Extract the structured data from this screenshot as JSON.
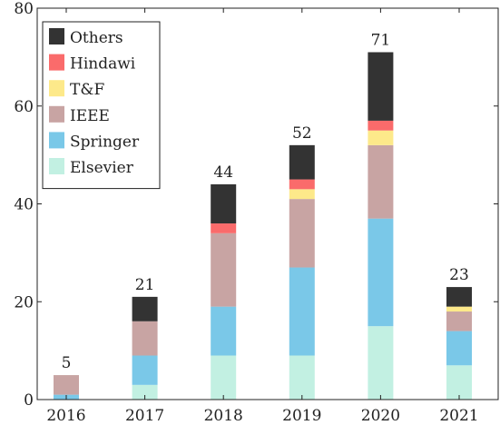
{
  "chart_data": {
    "type": "bar",
    "stacked": true,
    "categories": [
      "2016",
      "2017",
      "2018",
      "2019",
      "2020",
      "2021"
    ],
    "series": [
      {
        "name": "Elsevier",
        "color": "#c2f0e2",
        "values": [
          0,
          3,
          9,
          9,
          15,
          7
        ]
      },
      {
        "name": "Springer",
        "color": "#7ac8e8",
        "values": [
          1,
          6,
          10,
          18,
          22,
          7
        ]
      },
      {
        "name": "IEEE",
        "color": "#c8a4a3",
        "values": [
          4,
          7,
          15,
          14,
          15,
          4
        ]
      },
      {
        "name": "T&F",
        "color": "#fde98a",
        "values": [
          0,
          0,
          0,
          2,
          3,
          1
        ]
      },
      {
        "name": "Hindawi",
        "color": "#fa6b6b",
        "values": [
          0,
          0,
          2,
          2,
          2,
          0
        ]
      },
      {
        "name": "Others",
        "color": "#333333",
        "values": [
          0,
          5,
          8,
          7,
          14,
          4
        ]
      }
    ],
    "totals": [
      "5",
      "21",
      "44",
      "52",
      "71",
      "23"
    ],
    "y_ticks": [
      "0",
      "20",
      "40",
      "60",
      "80"
    ],
    "ylim": [
      0,
      80
    ],
    "legend_position": "top-left",
    "legend_order": [
      "Others",
      "Hindawi",
      "T&F",
      "IEEE",
      "Springer",
      "Elsevier"
    ],
    "grid": false,
    "title": "",
    "xlabel": "",
    "ylabel": ""
  }
}
